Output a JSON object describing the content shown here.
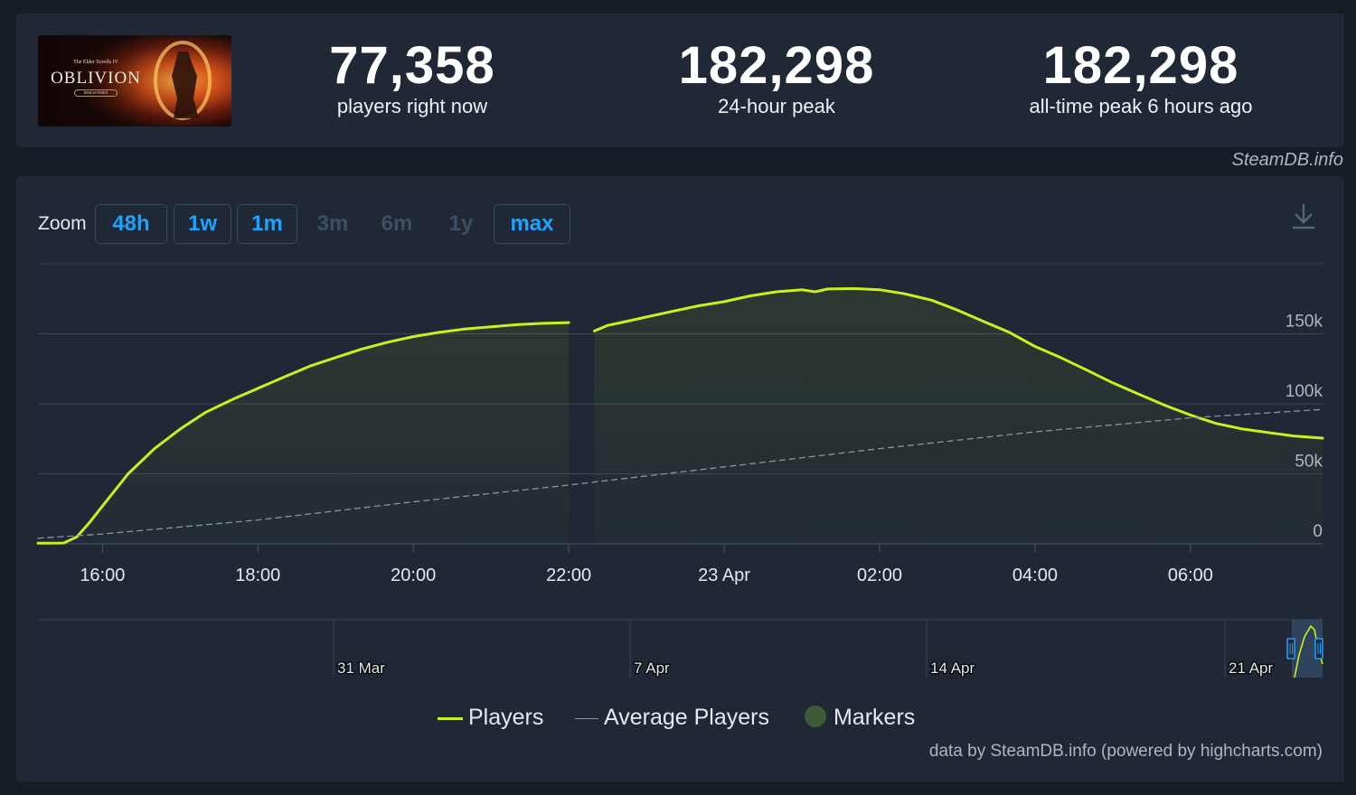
{
  "header": {
    "game_logo": {
      "series": "The Elder Scrolls IV",
      "title": "OBLIVION",
      "subtitle": "REMASTERED"
    },
    "stats": [
      {
        "value": "77,358",
        "label": "players right now"
      },
      {
        "value": "182,298",
        "label": "24-hour peak"
      },
      {
        "value": "182,298",
        "label": "all-time peak 6 hours ago"
      }
    ]
  },
  "watermark": "SteamDB.info",
  "zoom": {
    "label": "Zoom",
    "buttons": [
      {
        "label": "48h",
        "enabled": true
      },
      {
        "label": "1w",
        "enabled": true
      },
      {
        "label": "1m",
        "enabled": true
      },
      {
        "label": "3m",
        "enabled": false
      },
      {
        "label": "6m",
        "enabled": false
      },
      {
        "label": "1y",
        "enabled": false
      },
      {
        "label": "max",
        "enabled": true
      }
    ]
  },
  "chart_data": {
    "type": "line",
    "x_unit": "hours",
    "x_ticks": [
      {
        "t": 16,
        "label": "16:00"
      },
      {
        "t": 18,
        "label": "18:00"
      },
      {
        "t": 20,
        "label": "20:00"
      },
      {
        "t": 22,
        "label": "22:00"
      },
      {
        "t": 24,
        "label": "23 Apr"
      },
      {
        "t": 26,
        "label": "02:00"
      },
      {
        "t": 28,
        "label": "04:00"
      },
      {
        "t": 30,
        "label": "06:00"
      }
    ],
    "xlim": [
      15.17,
      31.7
    ],
    "ylim": [
      0,
      200000
    ],
    "y_ticks": [
      {
        "v": 0,
        "label": "0"
      },
      {
        "v": 50000,
        "label": "50k"
      },
      {
        "v": 100000,
        "label": "100k"
      },
      {
        "v": 150000,
        "label": "150k"
      }
    ],
    "grid": true,
    "series": [
      {
        "name": "Players",
        "color": "#ccf01c",
        "segments": [
          [
            [
              15.17,
              500
            ],
            [
              15.5,
              600
            ],
            [
              15.67,
              5000
            ],
            [
              15.83,
              15000
            ],
            [
              16.0,
              27000
            ],
            [
              16.33,
              50000
            ],
            [
              16.67,
              68000
            ],
            [
              17.0,
              82000
            ],
            [
              17.33,
              94000
            ],
            [
              17.67,
              103000
            ],
            [
              18.0,
              111000
            ],
            [
              18.33,
              119000
            ],
            [
              18.67,
              127000
            ],
            [
              19.0,
              133000
            ],
            [
              19.33,
              139000
            ],
            [
              19.67,
              144000
            ],
            [
              20.0,
              148000
            ],
            [
              20.33,
              151000
            ],
            [
              20.67,
              153500
            ],
            [
              21.0,
              155000
            ],
            [
              21.33,
              156500
            ],
            [
              21.67,
              157500
            ],
            [
              22.0,
              158000
            ]
          ],
          [
            [
              22.33,
              152000
            ],
            [
              22.5,
              156000
            ],
            [
              22.67,
              158000
            ],
            [
              23.0,
              162000
            ],
            [
              23.33,
              166000
            ],
            [
              23.67,
              170000
            ],
            [
              24.0,
              173000
            ],
            [
              24.33,
              177000
            ],
            [
              24.67,
              180000
            ],
            [
              25.0,
              181500
            ],
            [
              25.17,
              180000
            ],
            [
              25.33,
              182000
            ],
            [
              25.67,
              182300
            ],
            [
              26.0,
              181500
            ],
            [
              26.33,
              178500
            ],
            [
              26.67,
              174000
            ],
            [
              27.0,
              167000
            ],
            [
              27.33,
              159000
            ],
            [
              27.67,
              151000
            ],
            [
              28.0,
              141000
            ],
            [
              28.33,
              133000
            ],
            [
              28.67,
              124000
            ],
            [
              29.0,
              115000
            ],
            [
              29.33,
              107000
            ],
            [
              29.67,
              99000
            ],
            [
              30.0,
              92000
            ],
            [
              30.33,
              86000
            ],
            [
              30.67,
              82000
            ],
            [
              31.0,
              79500
            ],
            [
              31.33,
              77000
            ],
            [
              31.7,
              75500
            ]
          ]
        ]
      },
      {
        "name": "Average Players",
        "color": "#8b95a1",
        "dashed": true,
        "segments": [
          [
            [
              15.17,
              4000
            ],
            [
              16.0,
              7000
            ],
            [
              18.0,
              17000
            ],
            [
              20.0,
              30000
            ],
            [
              22.0,
              42000
            ],
            [
              24.0,
              55000
            ],
            [
              26.0,
              68000
            ],
            [
              28.0,
              80000
            ],
            [
              30.0,
              90000
            ],
            [
              31.7,
              96000
            ]
          ]
        ]
      }
    ],
    "navigator": {
      "labels": [
        "31 Mar",
        "7 Apr",
        "14 Apr",
        "21 Apr"
      ]
    },
    "legend": [
      {
        "name": "Players",
        "color": "#ccf01c",
        "symbol": "line"
      },
      {
        "name": "Average Players",
        "color": "#8b95a1",
        "symbol": "thin-line"
      },
      {
        "name": "Markers",
        "color": "#3f5a37",
        "symbol": "circle"
      }
    ]
  },
  "download_icon": "download-icon",
  "credit": "data by SteamDB.info (powered by highcharts.com)"
}
